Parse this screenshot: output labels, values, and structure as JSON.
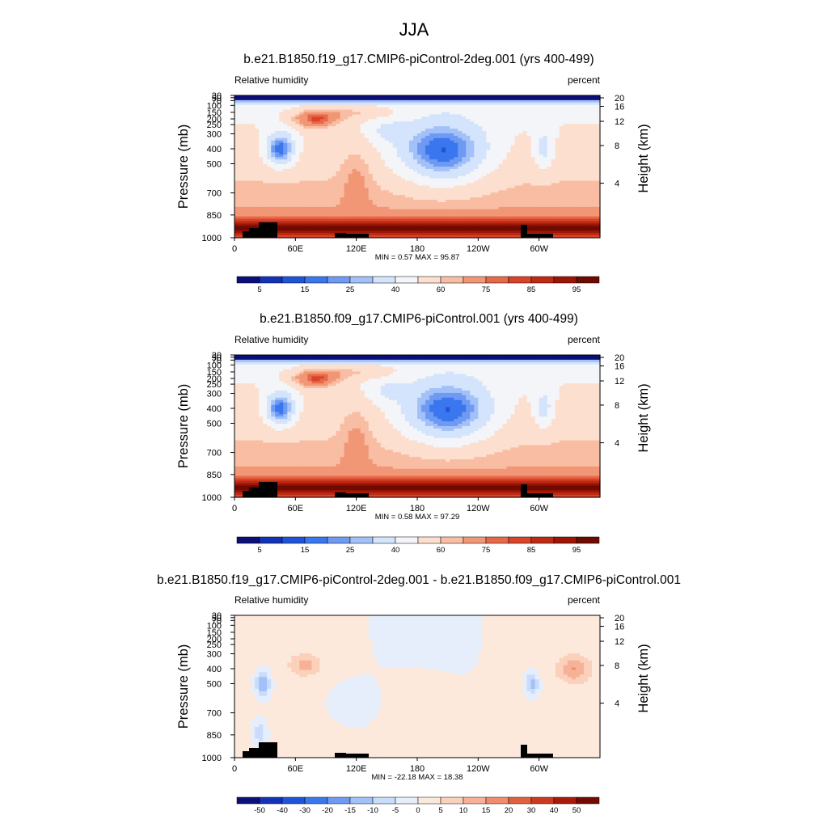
{
  "page": {
    "title": "JJA"
  },
  "chart_data": [
    {
      "type": "heatmap",
      "title": "b.e21.B1850.f19_g17.CMIP6-piControl-2deg.001 (yrs 400-499)",
      "left_string": "Relative humidity",
      "right_string": "percent",
      "xlabel": "",
      "ylabel": "Pressure (mb)",
      "y2label": "Height (km)",
      "x_ticks": [
        "0",
        "60E",
        "120E",
        "180",
        "120W",
        "60W"
      ],
      "y_ticks": [
        "30",
        "50",
        "70",
        "100",
        "150",
        "200",
        "250",
        "300",
        "400",
        "500",
        "700",
        "850",
        "1000"
      ],
      "y2_ticks": [
        "20",
        "16",
        "12",
        "8",
        "4"
      ],
      "stats": "MIN =   0.57  MAX =  95.87",
      "min": 0.57,
      "max": 95.87,
      "colorbar_labels": [
        "5",
        "15",
        "25",
        "40",
        "60",
        "75",
        "85",
        "95"
      ],
      "colorbar_colors": [
        "#0b0f7a",
        "#1233b5",
        "#1f53d8",
        "#3a77ee",
        "#6f9af4",
        "#a3c1f9",
        "#d3e4fc",
        "#f4f5f8",
        "#fcdfcf",
        "#f8bda2",
        "#f19776",
        "#e7694a",
        "#d9432a",
        "#bf2a14",
        "#9b1606",
        "#6e0a00"
      ],
      "features": [
        {
          "lon": 45,
          "p": 400,
          "rh": 12
        },
        {
          "lon": 210,
          "p": 420,
          "rh": 8
        },
        {
          "lon": 80,
          "p": 200,
          "rh": 75
        },
        {
          "lon": 230,
          "p": 950,
          "rh": 92
        }
      ]
    },
    {
      "type": "heatmap",
      "title": "b.e21.B1850.f09_g17.CMIP6-piControl.001 (yrs 400-499)",
      "left_string": "Relative humidity",
      "right_string": "percent",
      "xlabel": "",
      "ylabel": "Pressure (mb)",
      "y2label": "Height (km)",
      "x_ticks": [
        "0",
        "60E",
        "120E",
        "180",
        "120W",
        "60W"
      ],
      "y_ticks": [
        "30",
        "50",
        "70",
        "100",
        "150",
        "200",
        "250",
        "300",
        "400",
        "500",
        "700",
        "850",
        "1000"
      ],
      "y2_ticks": [
        "20",
        "16",
        "12",
        "8",
        "4"
      ],
      "stats": "MIN =   0.58  MAX =  97.29",
      "min": 0.58,
      "max": 97.29,
      "colorbar_labels": [
        "5",
        "15",
        "25",
        "40",
        "60",
        "75",
        "85",
        "95"
      ],
      "colorbar_colors": [
        "#0b0f7a",
        "#1233b5",
        "#1f53d8",
        "#3a77ee",
        "#6f9af4",
        "#a3c1f9",
        "#d3e4fc",
        "#f4f5f8",
        "#fcdfcf",
        "#f8bda2",
        "#f19776",
        "#e7694a",
        "#d9432a",
        "#bf2a14",
        "#9b1606",
        "#6e0a00"
      ],
      "features": [
        {
          "lon": 42,
          "p": 400,
          "rh": 15
        },
        {
          "lon": 210,
          "p": 400,
          "rh": 5
        },
        {
          "lon": 85,
          "p": 200,
          "rh": 80
        },
        {
          "lon": 240,
          "p": 960,
          "rh": 95
        }
      ]
    },
    {
      "type": "heatmap",
      "title": "b.e21.B1850.f19_g17.CMIP6-piControl-2deg.001 - b.e21.B1850.f09_g17.CMIP6-piControl.001",
      "left_string": "Relative humidity",
      "right_string": "percent",
      "xlabel": "",
      "ylabel": "Pressure (mb)",
      "y2label": "Height (km)",
      "x_ticks": [
        "0",
        "60E",
        "120E",
        "180",
        "120W",
        "60W"
      ],
      "y_ticks": [
        "30",
        "50",
        "70",
        "100",
        "150",
        "200",
        "250",
        "300",
        "400",
        "500",
        "700",
        "850",
        "1000"
      ],
      "y2_ticks": [
        "20",
        "16",
        "12",
        "8",
        "4"
      ],
      "stats": "MIN = -22.18  MAX =  18.38",
      "min": -22.18,
      "max": 18.38,
      "colorbar_labels": [
        "-50",
        "-40",
        "-30",
        "-20",
        "-15",
        "-10",
        "-5",
        "0",
        "5",
        "10",
        "15",
        "20",
        "30",
        "40",
        "50"
      ],
      "colorbar_colors": [
        "#0b0f7a",
        "#1233b5",
        "#1f53d8",
        "#3a77ee",
        "#6f9af4",
        "#a3c1f9",
        "#c9dcfb",
        "#e6eefc",
        "#fde9dc",
        "#fbd1bb",
        "#f6b197",
        "#ef8d6c",
        "#e25f40",
        "#cc3a20",
        "#a81b0a",
        "#740b00"
      ],
      "features": [
        {
          "lon": 28,
          "p": 500,
          "rh": -15
        },
        {
          "lon": 70,
          "p": 350,
          "rh": 8
        },
        {
          "lon": 335,
          "p": 380,
          "rh": 12
        },
        {
          "lon": 293,
          "p": 500,
          "rh": -12
        }
      ]
    }
  ]
}
